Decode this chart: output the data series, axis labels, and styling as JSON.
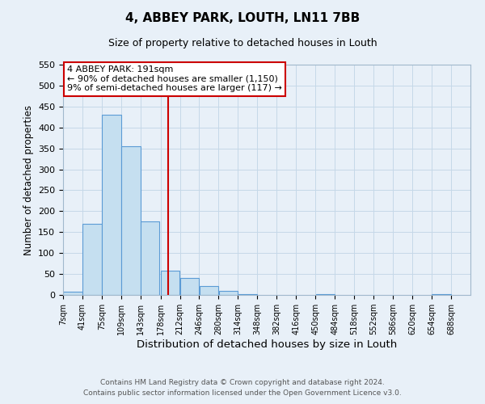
{
  "title": "4, ABBEY PARK, LOUTH, LN11 7BB",
  "subtitle": "Size of property relative to detached houses in Louth",
  "xlabel": "Distribution of detached houses by size in Louth",
  "ylabel": "Number of detached properties",
  "bar_color": "#c5dff0",
  "bar_edge_color": "#5b9bd5",
  "bin_starts": [
    7,
    41,
    75,
    109,
    143,
    178,
    212,
    246,
    280,
    314,
    348,
    382,
    416,
    450,
    484,
    518,
    552,
    586,
    620,
    654
  ],
  "bin_width": 34,
  "bar_heights": [
    8,
    170,
    430,
    355,
    175,
    57,
    40,
    22,
    10,
    2,
    0,
    0,
    0,
    1,
    0,
    0,
    0,
    0,
    0,
    1
  ],
  "xlim_left": 7,
  "xlim_right": 722,
  "ylim_top": 550,
  "yticks": [
    0,
    50,
    100,
    150,
    200,
    250,
    300,
    350,
    400,
    450,
    500,
    550
  ],
  "xtick_labels": [
    "7sqm",
    "41sqm",
    "75sqm",
    "109sqm",
    "143sqm",
    "178sqm",
    "212sqm",
    "246sqm",
    "280sqm",
    "314sqm",
    "348sqm",
    "382sqm",
    "416sqm",
    "450sqm",
    "484sqm",
    "518sqm",
    "552sqm",
    "586sqm",
    "620sqm",
    "654sqm",
    "688sqm"
  ],
  "xtick_positions": [
    7,
    41,
    75,
    109,
    143,
    178,
    212,
    246,
    280,
    314,
    348,
    382,
    416,
    450,
    484,
    518,
    552,
    586,
    620,
    654,
    688
  ],
  "vline_x": 191,
  "vline_color": "#cc0000",
  "annotation_line1": "4 ABBEY PARK: 191sqm",
  "annotation_line2": "← 90% of detached houses are smaller (1,150)",
  "annotation_line3": "9% of semi-detached houses are larger (117) →",
  "annotation_box_color": "#ffffff",
  "annotation_box_edge_color": "#cc0000",
  "grid_color": "#c5d8e8",
  "background_color": "#e8f0f8",
  "footer_line1": "Contains HM Land Registry data © Crown copyright and database right 2024.",
  "footer_line2": "Contains public sector information licensed under the Open Government Licence v3.0."
}
